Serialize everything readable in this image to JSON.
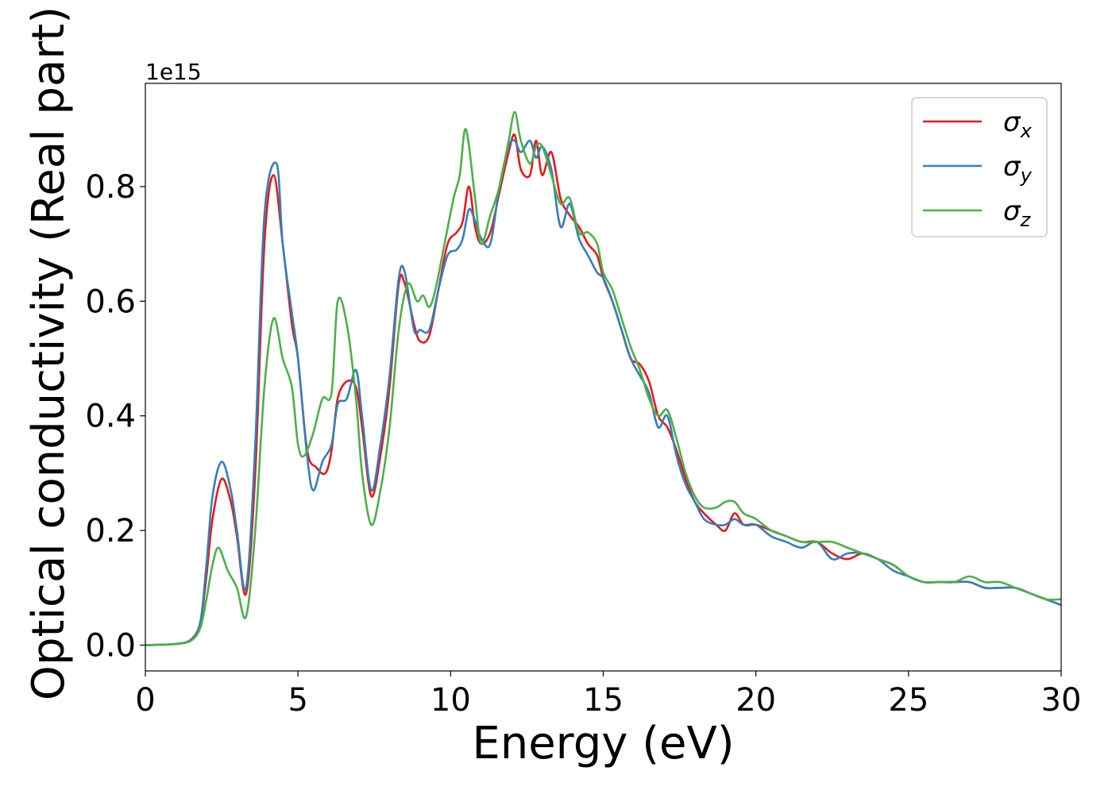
{
  "chart_data": {
    "type": "line",
    "title": "",
    "xlabel": "Energy (eV)",
    "ylabel": "Optical conductivity (Real part)",
    "y_offset_label": "1e15",
    "xlim": [
      0,
      30
    ],
    "ylim": [
      -0.045,
      0.98
    ],
    "xticks": [
      0,
      5,
      10,
      15,
      20,
      25,
      30
    ],
    "yticks": [
      0.0,
      0.2,
      0.4,
      0.6,
      0.8
    ],
    "ytick_labels": [
      "0.0",
      "0.2",
      "0.4",
      "0.6",
      "0.8"
    ],
    "grid": false,
    "legend_position": "top-right",
    "series": [
      {
        "name": "σ",
        "subscript": "x",
        "color": "#e41a1c",
        "x": [
          0,
          1,
          1.5,
          1.8,
          2.0,
          2.2,
          2.5,
          2.8,
          3.0,
          3.3,
          3.6,
          3.9,
          4.2,
          4.5,
          4.8,
          5.0,
          5.3,
          5.6,
          5.9,
          6.1,
          6.3,
          6.6,
          6.9,
          7.1,
          7.4,
          7.7,
          8.0,
          8.3,
          8.5,
          8.8,
          9.0,
          9.3,
          9.6,
          9.9,
          10.2,
          10.4,
          10.6,
          10.8,
          11.0,
          11.3,
          11.6,
          11.9,
          12.1,
          12.3,
          12.6,
          12.8,
          13.0,
          13.3,
          13.6,
          13.9,
          14.2,
          14.5,
          14.8,
          15.0,
          15.3,
          15.6,
          15.9,
          16.2,
          16.5,
          16.8,
          17.1,
          17.4,
          17.7,
          18.0,
          18.3,
          18.7,
          19.0,
          19.3,
          19.6,
          20.0,
          20.5,
          21.0,
          21.5,
          22.0,
          22.5,
          23.0,
          23.5,
          24.0,
          24.5,
          25.0,
          25.5,
          26.0,
          26.5,
          27.0,
          27.5,
          28.0,
          28.5,
          29.0,
          29.5,
          30.0
        ],
        "values": [
          0.0,
          0.002,
          0.01,
          0.04,
          0.12,
          0.22,
          0.29,
          0.25,
          0.19,
          0.09,
          0.3,
          0.7,
          0.82,
          0.7,
          0.56,
          0.5,
          0.34,
          0.31,
          0.3,
          0.34,
          0.43,
          0.46,
          0.45,
          0.38,
          0.26,
          0.33,
          0.45,
          0.63,
          0.63,
          0.56,
          0.53,
          0.54,
          0.62,
          0.7,
          0.72,
          0.74,
          0.8,
          0.73,
          0.7,
          0.72,
          0.79,
          0.86,
          0.89,
          0.83,
          0.82,
          0.88,
          0.82,
          0.86,
          0.78,
          0.75,
          0.73,
          0.7,
          0.68,
          0.64,
          0.6,
          0.55,
          0.5,
          0.49,
          0.46,
          0.4,
          0.38,
          0.34,
          0.29,
          0.25,
          0.23,
          0.21,
          0.2,
          0.23,
          0.21,
          0.21,
          0.2,
          0.19,
          0.18,
          0.18,
          0.16,
          0.15,
          0.16,
          0.15,
          0.14,
          0.12,
          0.11,
          0.11,
          0.11,
          0.11,
          0.1,
          0.1,
          0.1,
          0.09,
          0.08,
          0.07
        ]
      },
      {
        "name": "σ",
        "subscript": "y",
        "color": "#377eb8",
        "x": [
          0,
          1,
          1.5,
          1.8,
          2.0,
          2.2,
          2.5,
          2.8,
          3.0,
          3.3,
          3.6,
          3.9,
          4.3,
          4.5,
          4.8,
          5.0,
          5.3,
          5.5,
          5.8,
          6.1,
          6.3,
          6.6,
          6.9,
          7.1,
          7.4,
          7.7,
          8.0,
          8.3,
          8.5,
          8.8,
          9.0,
          9.3,
          9.6,
          9.9,
          10.2,
          10.4,
          10.6,
          10.8,
          11.0,
          11.3,
          11.6,
          11.9,
          12.1,
          12.3,
          12.6,
          12.8,
          13.0,
          13.3,
          13.6,
          13.9,
          14.2,
          14.5,
          14.8,
          15.0,
          15.3,
          15.6,
          15.9,
          16.2,
          16.5,
          16.8,
          17.1,
          17.4,
          17.7,
          18.0,
          18.3,
          18.7,
          19.0,
          19.3,
          19.6,
          20.0,
          20.5,
          21.0,
          21.5,
          22.0,
          22.5,
          23.0,
          23.5,
          24.0,
          24.5,
          25.0,
          25.5,
          26.0,
          26.5,
          27.0,
          27.5,
          28.0,
          28.5,
          29.0,
          29.5,
          30.0
        ],
        "values": [
          0.0,
          0.002,
          0.01,
          0.04,
          0.14,
          0.26,
          0.32,
          0.27,
          0.2,
          0.1,
          0.35,
          0.75,
          0.84,
          0.7,
          0.58,
          0.5,
          0.33,
          0.27,
          0.32,
          0.35,
          0.42,
          0.43,
          0.48,
          0.4,
          0.27,
          0.35,
          0.47,
          0.64,
          0.65,
          0.55,
          0.55,
          0.55,
          0.62,
          0.68,
          0.69,
          0.71,
          0.76,
          0.74,
          0.71,
          0.7,
          0.8,
          0.87,
          0.88,
          0.86,
          0.88,
          0.85,
          0.87,
          0.83,
          0.73,
          0.77,
          0.71,
          0.68,
          0.65,
          0.64,
          0.6,
          0.55,
          0.5,
          0.47,
          0.44,
          0.38,
          0.4,
          0.33,
          0.28,
          0.25,
          0.22,
          0.21,
          0.21,
          0.22,
          0.21,
          0.21,
          0.19,
          0.18,
          0.17,
          0.18,
          0.15,
          0.16,
          0.16,
          0.15,
          0.13,
          0.12,
          0.11,
          0.11,
          0.11,
          0.11,
          0.1,
          0.1,
          0.1,
          0.09,
          0.08,
          0.07
        ]
      },
      {
        "name": "σ",
        "subscript": "z",
        "color": "#4daf4a",
        "x": [
          0,
          1,
          1.5,
          1.8,
          2.0,
          2.2,
          2.4,
          2.7,
          3.0,
          3.3,
          3.6,
          3.9,
          4.2,
          4.5,
          4.8,
          5.0,
          5.2,
          5.5,
          5.8,
          6.1,
          6.3,
          6.6,
          6.9,
          7.1,
          7.4,
          7.7,
          8.0,
          8.3,
          8.6,
          8.9,
          9.1,
          9.3,
          9.5,
          9.8,
          10.1,
          10.3,
          10.5,
          10.8,
          11.0,
          11.3,
          11.6,
          11.9,
          12.1,
          12.3,
          12.6,
          12.8,
          13.0,
          13.3,
          13.6,
          13.9,
          14.2,
          14.5,
          14.8,
          15.0,
          15.3,
          15.6,
          15.9,
          16.2,
          16.5,
          16.8,
          17.1,
          17.4,
          17.7,
          18.0,
          18.3,
          18.7,
          19.0,
          19.3,
          19.6,
          20.0,
          20.5,
          21.0,
          21.5,
          22.0,
          22.5,
          23.0,
          23.5,
          24.0,
          24.5,
          25.0,
          25.5,
          26.0,
          26.5,
          27.0,
          27.5,
          28.0,
          28.5,
          29.0,
          29.5,
          30.0
        ],
        "values": [
          0.0,
          0.002,
          0.008,
          0.03,
          0.08,
          0.14,
          0.17,
          0.13,
          0.1,
          0.05,
          0.2,
          0.45,
          0.57,
          0.5,
          0.45,
          0.35,
          0.33,
          0.37,
          0.43,
          0.44,
          0.6,
          0.56,
          0.43,
          0.3,
          0.21,
          0.27,
          0.38,
          0.55,
          0.63,
          0.6,
          0.61,
          0.59,
          0.62,
          0.7,
          0.78,
          0.82,
          0.9,
          0.78,
          0.7,
          0.75,
          0.8,
          0.88,
          0.93,
          0.88,
          0.84,
          0.87,
          0.87,
          0.82,
          0.77,
          0.78,
          0.72,
          0.72,
          0.7,
          0.65,
          0.62,
          0.57,
          0.52,
          0.48,
          0.43,
          0.4,
          0.41,
          0.36,
          0.3,
          0.26,
          0.24,
          0.24,
          0.25,
          0.25,
          0.23,
          0.22,
          0.2,
          0.19,
          0.18,
          0.18,
          0.18,
          0.17,
          0.16,
          0.15,
          0.14,
          0.12,
          0.11,
          0.11,
          0.11,
          0.12,
          0.11,
          0.11,
          0.1,
          0.09,
          0.08,
          0.08
        ]
      }
    ]
  }
}
